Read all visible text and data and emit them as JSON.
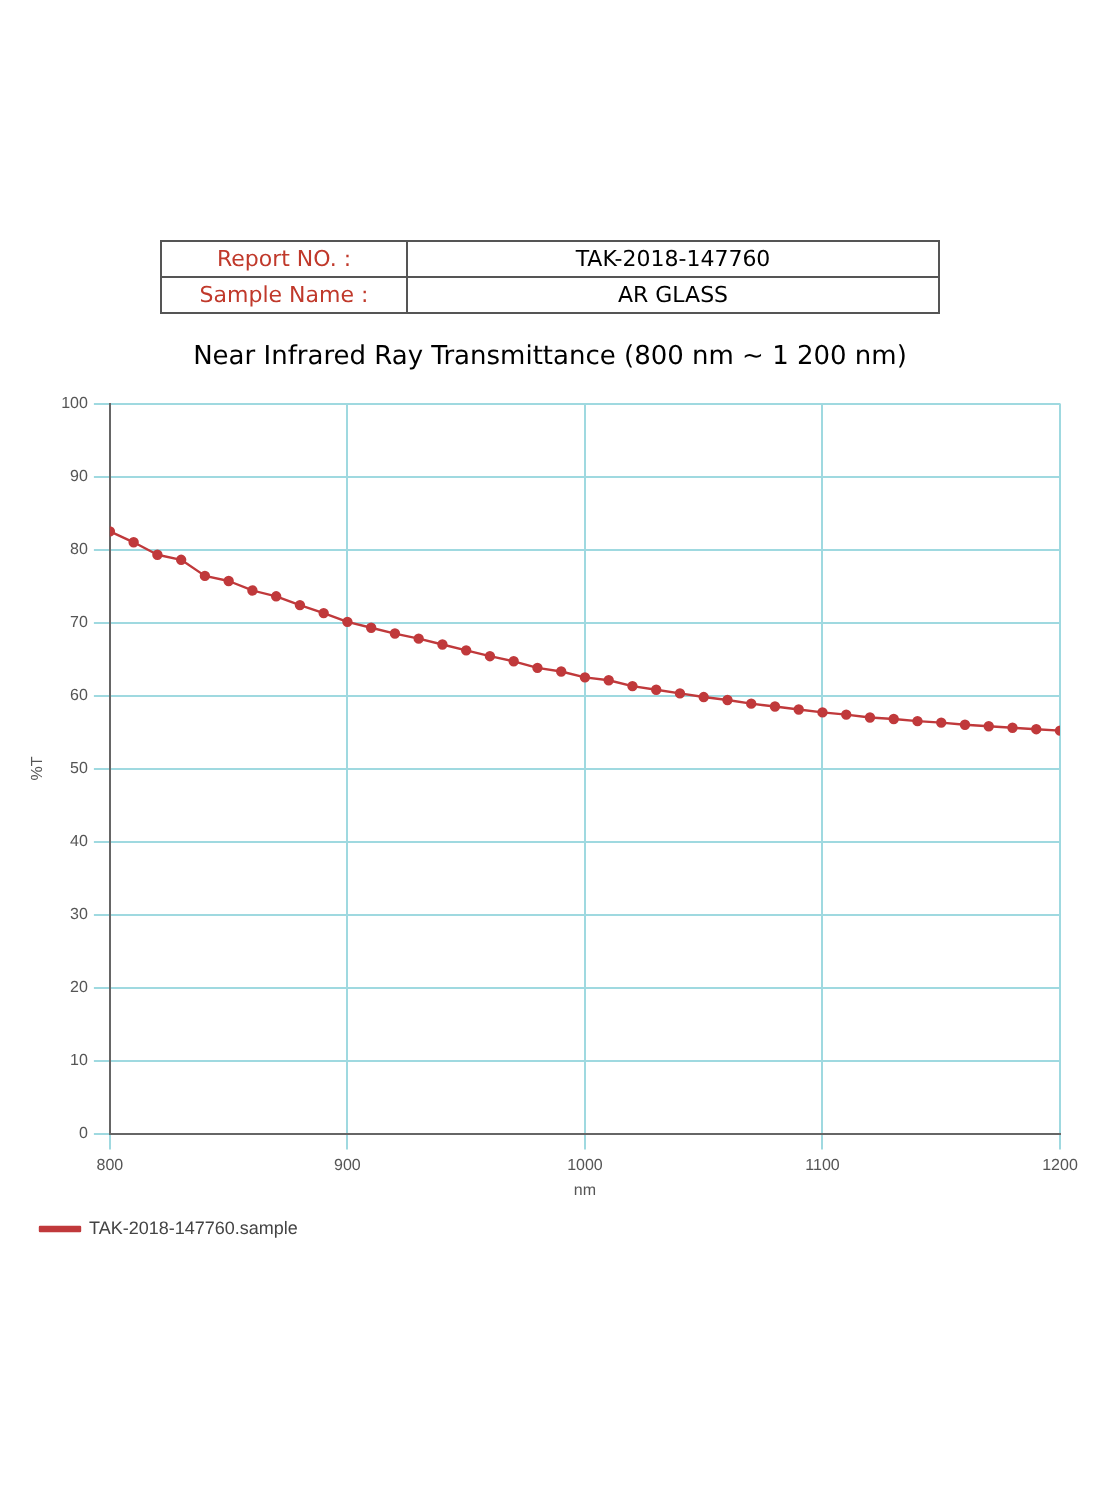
{
  "chart_data": {
    "type": "line",
    "title": "Near Infrared Ray Transmittance (800 nm ~ 1 200 nm)",
    "annotations": [
      "Report NO. : TAK-2018-147760",
      "Sample Name : AR GLASS"
    ],
    "xlabel": "nm",
    "ylabel": "%T",
    "x": [
      800,
      810,
      820,
      830,
      840,
      850,
      860,
      870,
      880,
      890,
      900,
      910,
      920,
      930,
      940,
      950,
      960,
      970,
      980,
      990,
      1000,
      1010,
      1020,
      1030,
      1040,
      1050,
      1060,
      1070,
      1080,
      1090,
      1100,
      1110,
      1120,
      1130,
      1140,
      1150,
      1160,
      1170,
      1180,
      1190,
      1200
    ],
    "series": [
      {
        "name": "TAK-2018-147760.sample",
        "color": "#c0393b",
        "values": [
          82.5,
          81.0,
          79.3,
          78.6,
          76.4,
          75.7,
          74.4,
          73.6,
          72.4,
          71.3,
          70.1,
          69.3,
          68.5,
          67.8,
          67.0,
          66.2,
          65.4,
          64.7,
          63.8,
          63.3,
          62.5,
          62.1,
          61.3,
          60.8,
          60.3,
          59.8,
          59.4,
          58.9,
          58.5,
          58.1,
          57.7,
          57.4,
          57.0,
          56.8,
          56.5,
          56.3,
          56.0,
          55.8,
          55.6,
          55.4,
          55.2
        ]
      }
    ],
    "xlim": [
      800,
      1200
    ],
    "xticks": [
      800,
      900,
      1000,
      1100,
      1200
    ],
    "ylim": [
      0,
      100
    ],
    "yticks": [
      0,
      10,
      20,
      30,
      40,
      50,
      60,
      70,
      80,
      90,
      100
    ],
    "grid": true,
    "legend": "bottom",
    "marker": "circle",
    "line_style": "solid"
  }
}
